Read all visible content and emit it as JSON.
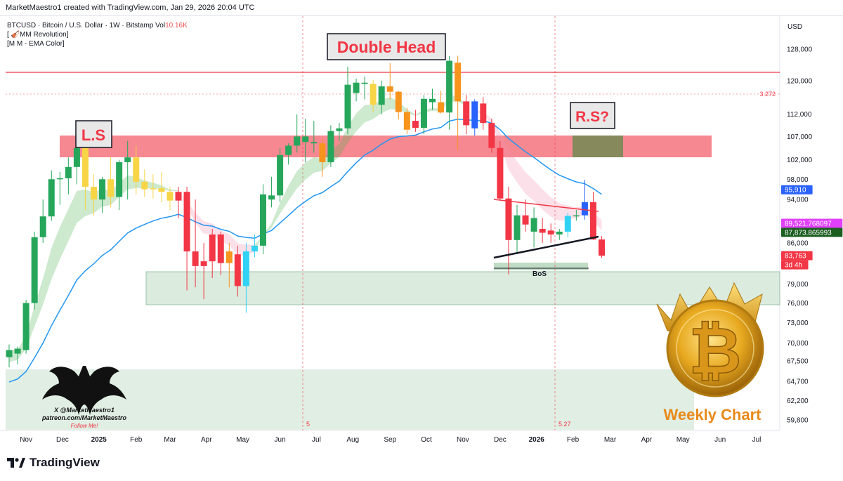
{
  "credit": "MarketMaestro1 created with TradingView.com, Jan 29, 2026 20:04 UTC",
  "legend": {
    "line1_prefix": "BTCUSD · Bitcoin / U.S. Dollar · 1W · Bitstamp  Vol",
    "line1_vol": "10.16K",
    "line2": "[ 🎻MM Revolution]",
    "line3": "[M M - EMA Color]"
  },
  "currency": "USD",
  "annotations": {
    "double_head": "Double Head",
    "left_shoulder": "L.S",
    "right_shoulder": "R.S?",
    "bos": "BoS",
    "weekly_chart": "Weekly Chart",
    "fib_label": "3.272",
    "marker_5": "5",
    "marker_527": "5.27"
  },
  "watermark": {
    "line1": "X @MarketMaestro1",
    "line2": "patreon.com/MarketMaestro",
    "line3": "Follow Me!"
  },
  "price_tags": [
    {
      "label": "95,910",
      "value": 95910,
      "color": "#2962ff"
    },
    {
      "label": "89,521.768097",
      "value": 89521.768097,
      "color": "#e040fb"
    },
    {
      "label": "87,873.865993",
      "value": 87873.865993,
      "color": "#1b5e20"
    },
    {
      "label": "83,763",
      "value": 83763,
      "color": "#f23645"
    },
    {
      "label": "3d 4h",
      "value": null,
      "color": "#f23645"
    }
  ],
  "footer": {
    "brand": "TradingView"
  },
  "colors": {
    "bull": "#26a65b",
    "bear": "#f23645",
    "orange": "#f7941d",
    "yellow": "#f7d547",
    "cyan": "#32d2f5",
    "blue": "#2962ff",
    "ema": "#2196f3",
    "resistance": "#f23645"
  },
  "chart_data": {
    "type": "candlestick",
    "symbol": "BTCUSD",
    "interval": "1W",
    "yscale": "log",
    "ylim": [
      58500,
      137000
    ],
    "y_ticks": [
      {
        "label": "128,000",
        "value": 128000
      },
      {
        "label": "120,000",
        "value": 120000
      },
      {
        "label": "112,000",
        "value": 112000
      },
      {
        "label": "107,000",
        "value": 107000
      },
      {
        "label": "102,000",
        "value": 102000
      },
      {
        "label": "98,000",
        "value": 98000
      },
      {
        "label": "94,000",
        "value": 94000
      },
      {
        "label": "86,000",
        "value": 86000
      },
      {
        "label": "79,000",
        "value": 79000
      },
      {
        "label": "76,000",
        "value": 76000
      },
      {
        "label": "73,000",
        "value": 73000
      },
      {
        "label": "70,000",
        "value": 70000
      },
      {
        "label": "67,500",
        "value": 67500
      },
      {
        "label": "64,700",
        "value": 64700
      },
      {
        "label": "62,200",
        "value": 62200
      },
      {
        "label": "59,800",
        "value": 59800
      }
    ],
    "x_ticks": [
      {
        "label": "Nov",
        "bar": 2,
        "bold": false
      },
      {
        "label": "Dec",
        "bar": 6.3,
        "bold": false
      },
      {
        "label": "2025",
        "bar": 10.6,
        "bold": true
      },
      {
        "label": "Feb",
        "bar": 15,
        "bold": false
      },
      {
        "label": "Mar",
        "bar": 19,
        "bold": false
      },
      {
        "label": "Apr",
        "bar": 23.3,
        "bold": false
      },
      {
        "label": "May",
        "bar": 27.6,
        "bold": false
      },
      {
        "label": "Jun",
        "bar": 32,
        "bold": false
      },
      {
        "label": "Jul",
        "bar": 36.3,
        "bold": false
      },
      {
        "label": "Aug",
        "bar": 40.6,
        "bold": false
      },
      {
        "label": "Sep",
        "bar": 45,
        "bold": false
      },
      {
        "label": "Oct",
        "bar": 49.3,
        "bold": false
      },
      {
        "label": "Nov",
        "bar": 53.6,
        "bold": false
      },
      {
        "label": "Dec",
        "bar": 58,
        "bold": false
      },
      {
        "label": "2026",
        "bar": 62.3,
        "bold": true
      },
      {
        "label": "Feb",
        "bar": 66.6,
        "bold": false
      },
      {
        "label": "Mar",
        "bar": 71,
        "bold": false
      },
      {
        "label": "Apr",
        "bar": 75.3,
        "bold": false
      },
      {
        "label": "May",
        "bar": 79.6,
        "bold": false
      },
      {
        "label": "Jun",
        "bar": 84,
        "bold": false
      },
      {
        "label": "Jul",
        "bar": 88.3,
        "bold": false
      }
    ],
    "candles": [
      {
        "o": 68000,
        "h": 69800,
        "l": 66600,
        "c": 69000,
        "color": "bull"
      },
      {
        "o": 68500,
        "h": 69500,
        "l": 67000,
        "c": 69200,
        "color": "bull"
      },
      {
        "o": 69000,
        "h": 76500,
        "l": 68500,
        "c": 76000,
        "color": "bull"
      },
      {
        "o": 76000,
        "h": 88000,
        "l": 75000,
        "c": 87000,
        "color": "bull"
      },
      {
        "o": 87000,
        "h": 94000,
        "l": 86000,
        "c": 90800,
        "color": "bull"
      },
      {
        "o": 90800,
        "h": 99800,
        "l": 90000,
        "c": 98000,
        "color": "bull"
      },
      {
        "o": 98000,
        "h": 99500,
        "l": 93000,
        "c": 98200,
        "color": "bull"
      },
      {
        "o": 98200,
        "h": 102500,
        "l": 95000,
        "c": 100500,
        "color": "bull"
      },
      {
        "o": 100500,
        "h": 108300,
        "l": 97000,
        "c": 104500,
        "color": "bull"
      },
      {
        "o": 104500,
        "h": 105000,
        "l": 92000,
        "c": 96500,
        "color": "yellow"
      },
      {
        "o": 96500,
        "h": 99000,
        "l": 91000,
        "c": 94000,
        "color": "yellow"
      },
      {
        "o": 94000,
        "h": 98500,
        "l": 91500,
        "c": 98000,
        "color": "bull"
      },
      {
        "o": 98000,
        "h": 102500,
        "l": 92500,
        "c": 94500,
        "color": "yellow"
      },
      {
        "o": 94500,
        "h": 102000,
        "l": 92000,
        "c": 101500,
        "color": "bull"
      },
      {
        "o": 101500,
        "h": 106000,
        "l": 94000,
        "c": 102500,
        "color": "bull"
      },
      {
        "o": 102500,
        "h": 105000,
        "l": 95000,
        "c": 97500,
        "color": "yellow"
      },
      {
        "o": 97500,
        "h": 100000,
        "l": 94500,
        "c": 96000,
        "color": "yellow"
      },
      {
        "o": 96000,
        "h": 99000,
        "l": 94200,
        "c": 96200,
        "color": "yellow"
      },
      {
        "o": 96200,
        "h": 99500,
        "l": 93500,
        "c": 95500,
        "color": "yellow"
      },
      {
        "o": 95500,
        "h": 96500,
        "l": 92000,
        "c": 93800,
        "color": "yellow"
      },
      {
        "o": 93800,
        "h": 96500,
        "l": 90500,
        "c": 95500,
        "color": "bear"
      },
      {
        "o": 95500,
        "h": 96500,
        "l": 78000,
        "c": 84500,
        "color": "bear"
      },
      {
        "o": 84500,
        "h": 94000,
        "l": 78500,
        "c": 82000,
        "color": "bear"
      },
      {
        "o": 82000,
        "h": 86000,
        "l": 76600,
        "c": 82800,
        "color": "bear"
      },
      {
        "o": 82800,
        "h": 88500,
        "l": 80000,
        "c": 87500,
        "color": "bear"
      },
      {
        "o": 87500,
        "h": 88000,
        "l": 80500,
        "c": 82500,
        "color": "bear"
      },
      {
        "o": 82500,
        "h": 86000,
        "l": 78500,
        "c": 84500,
        "color": "orange"
      },
      {
        "o": 84000,
        "h": 85500,
        "l": 77000,
        "c": 78700,
        "color": "bear"
      },
      {
        "o": 78700,
        "h": 86000,
        "l": 74500,
        "c": 84500,
        "color": "cyan"
      },
      {
        "o": 84500,
        "h": 87500,
        "l": 83500,
        "c": 85500,
        "color": "cyan"
      },
      {
        "o": 85500,
        "h": 97000,
        "l": 84000,
        "c": 95000,
        "color": "bull"
      },
      {
        "o": 94000,
        "h": 98500,
        "l": 92500,
        "c": 94800,
        "color": "bull"
      },
      {
        "o": 94800,
        "h": 104500,
        "l": 93500,
        "c": 103000,
        "color": "bull"
      },
      {
        "o": 103000,
        "h": 105500,
        "l": 101000,
        "c": 105000,
        "color": "bull"
      },
      {
        "o": 105000,
        "h": 112000,
        "l": 103500,
        "c": 107000,
        "color": "bull"
      },
      {
        "o": 107000,
        "h": 111000,
        "l": 101500,
        "c": 105800,
        "color": "bull"
      },
      {
        "o": 105800,
        "h": 110500,
        "l": 103500,
        "c": 105500,
        "color": "bull"
      },
      {
        "o": 105500,
        "h": 106500,
        "l": 98500,
        "c": 101500,
        "color": "orange"
      },
      {
        "o": 101500,
        "h": 109500,
        "l": 100500,
        "c": 108200,
        "color": "bull"
      },
      {
        "o": 108200,
        "h": 110000,
        "l": 106000,
        "c": 108800,
        "color": "bull"
      },
      {
        "o": 108800,
        "h": 123500,
        "l": 107500,
        "c": 119000,
        "color": "bull"
      },
      {
        "o": 117000,
        "h": 120500,
        "l": 115000,
        "c": 119500,
        "color": "bull"
      },
      {
        "o": 119500,
        "h": 121000,
        "l": 115500,
        "c": 119200,
        "color": "bull"
      },
      {
        "o": 119200,
        "h": 120200,
        "l": 112500,
        "c": 114200,
        "color": "yellow"
      },
      {
        "o": 114200,
        "h": 120000,
        "l": 112000,
        "c": 118600,
        "color": "bull"
      },
      {
        "o": 118600,
        "h": 124400,
        "l": 115500,
        "c": 117300,
        "color": "orange"
      },
      {
        "o": 117300,
        "h": 117500,
        "l": 110800,
        "c": 112500,
        "color": "orange"
      },
      {
        "o": 112500,
        "h": 113500,
        "l": 107500,
        "c": 108500,
        "color": "orange"
      },
      {
        "o": 110500,
        "h": 113000,
        "l": 108000,
        "c": 108900,
        "color": "bear"
      },
      {
        "o": 108900,
        "h": 116500,
        "l": 107500,
        "c": 115600,
        "color": "bull"
      },
      {
        "o": 115600,
        "h": 118000,
        "l": 113000,
        "c": 114800,
        "color": "bull"
      },
      {
        "o": 114800,
        "h": 117500,
        "l": 112200,
        "c": 112400,
        "color": "orange"
      },
      {
        "o": 112400,
        "h": 126200,
        "l": 108500,
        "c": 125000,
        "color": "bull"
      },
      {
        "o": 124500,
        "h": 126300,
        "l": 104000,
        "c": 115000,
        "color": "orange"
      },
      {
        "o": 115000,
        "h": 116500,
        "l": 107500,
        "c": 109500,
        "color": "bear"
      },
      {
        "o": 115000,
        "h": 115500,
        "l": 107200,
        "c": 108800,
        "color": "blue"
      },
      {
        "o": 114500,
        "h": 116000,
        "l": 108500,
        "c": 110000,
        "color": "bear"
      },
      {
        "o": 110000,
        "h": 111000,
        "l": 103500,
        "c": 104500,
        "color": "bear"
      },
      {
        "o": 104500,
        "h": 106000,
        "l": 94000,
        "c": 94200,
        "color": "bear"
      },
      {
        "o": 94200,
        "h": 96500,
        "l": 80600,
        "c": 86500,
        "color": "bear"
      },
      {
        "o": 86500,
        "h": 93000,
        "l": 84000,
        "c": 91000,
        "color": "bull"
      },
      {
        "o": 91000,
        "h": 94000,
        "l": 88000,
        "c": 89300,
        "color": "bear"
      },
      {
        "o": 88000,
        "h": 92500,
        "l": 85200,
        "c": 90500,
        "color": "bull"
      },
      {
        "o": 88500,
        "h": 90500,
        "l": 86000,
        "c": 87800,
        "color": "bear"
      },
      {
        "o": 88200,
        "h": 89500,
        "l": 86000,
        "c": 87500,
        "color": "bear"
      },
      {
        "o": 87500,
        "h": 88500,
        "l": 86500,
        "c": 88000,
        "color": "bull"
      },
      {
        "o": 88000,
        "h": 91500,
        "l": 87000,
        "c": 90900,
        "color": "cyan"
      },
      {
        "o": 90900,
        "h": 92000,
        "l": 90000,
        "c": 91000,
        "color": "bull"
      },
      {
        "o": 91000,
        "h": 97900,
        "l": 90200,
        "c": 93500,
        "color": "blue"
      },
      {
        "o": 93500,
        "h": 95500,
        "l": 86500,
        "c": 86600,
        "color": "bear"
      },
      {
        "o": 86600,
        "h": 87200,
        "l": 83400,
        "c": 83763,
        "color": "bear"
      }
    ]
  }
}
